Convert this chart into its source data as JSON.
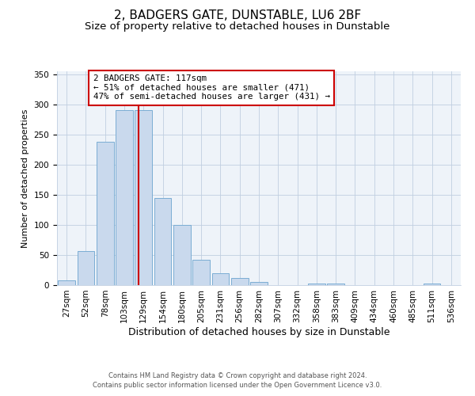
{
  "title": "2, BADGERS GATE, DUNSTABLE, LU6 2BF",
  "subtitle": "Size of property relative to detached houses in Dunstable",
  "bar_labels": [
    "27sqm",
    "52sqm",
    "78sqm",
    "103sqm",
    "129sqm",
    "154sqm",
    "180sqm",
    "205sqm",
    "231sqm",
    "256sqm",
    "282sqm",
    "307sqm",
    "332sqm",
    "358sqm",
    "383sqm",
    "409sqm",
    "434sqm",
    "460sqm",
    "485sqm",
    "511sqm",
    "536sqm"
  ],
  "bar_values": [
    8,
    57,
    238,
    290,
    290,
    145,
    100,
    42,
    20,
    12,
    5,
    0,
    0,
    3,
    3,
    0,
    0,
    0,
    0,
    2,
    0
  ],
  "bar_color": "#c9d9ed",
  "bar_edge_color": "#7aadd4",
  "vline_color": "#cc0000",
  "vline_pos": 3.73,
  "ylabel": "Number of detached properties",
  "xlabel": "Distribution of detached houses by size in Dunstable",
  "ylim": [
    0,
    355
  ],
  "annotation_title": "2 BADGERS GATE: 117sqm",
  "annotation_line1": "← 51% of detached houses are smaller (471)",
  "annotation_line2": "47% of semi-detached houses are larger (431) →",
  "footer1": "Contains HM Land Registry data © Crown copyright and database right 2024.",
  "footer2": "Contains public sector information licensed under the Open Government Licence v3.0.",
  "title_fontsize": 11,
  "subtitle_fontsize": 9.5,
  "ylabel_fontsize": 8,
  "xlabel_fontsize": 9,
  "tick_fontsize": 7.5,
  "ann_fontsize": 7.8,
  "footer_fontsize": 6
}
